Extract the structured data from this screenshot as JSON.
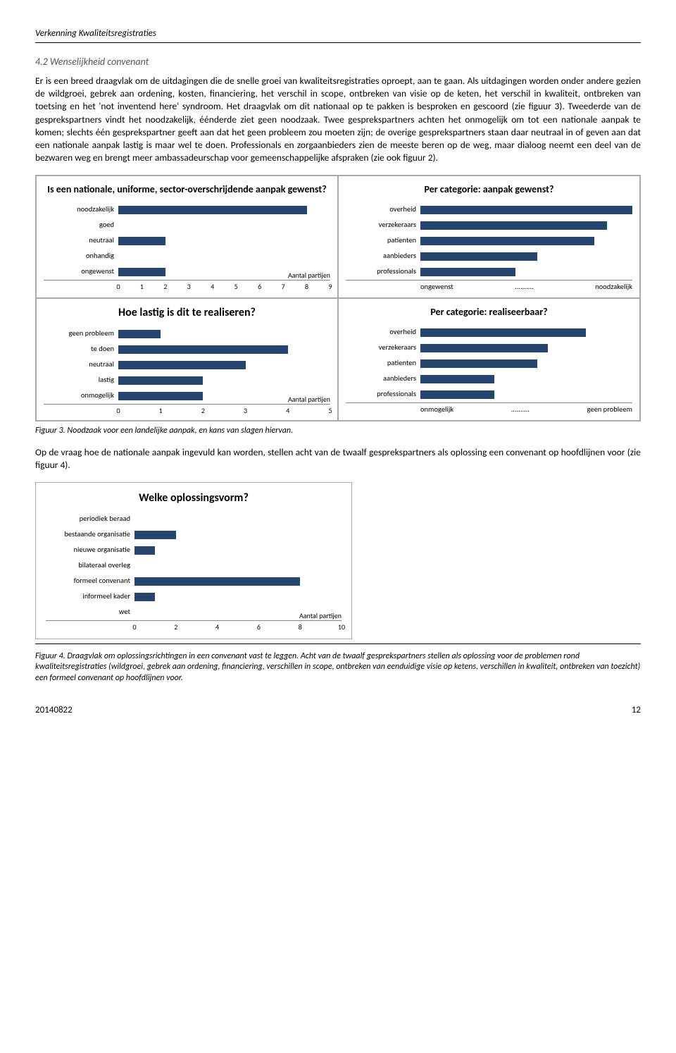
{
  "header": {
    "doc_title": "Verkenning Kwaliteitsregistraties"
  },
  "section": {
    "heading": "4.2 Wenselijkheid convenant",
    "paragraph": "Er is een breed draagvlak om de uitdagingen die de snelle groei van kwaliteitsregistraties oproept, aan te gaan. Als uitdagingen worden onder andere gezien de wildgroei, gebrek aan ordening, kosten, financiering, het verschil in scope, ontbreken van visie op de keten, het verschil in kwaliteit, ontbreken van toetsing en het 'not inventend here' syndroom. Het draagvlak om dit nationaal op te pakken is besproken en gescoord (zie figuur 3). Tweederde van de gesprekspartners vindt het noodzakelijk, éénderde ziet geen noodzaak. Twee gesprekspartners achten het onmogelijk om tot een nationale aanpak te komen; slechts één gesprekspartner geeft aan dat het geen probleem zou moeten zijn; de overige gesprekspartners staan daar neutraal in of geven aan dat een nationale aanpak lastig is maar wel te doen. Professionals en zorgaanbieders zien de meeste beren op de weg, maar dialoog neemt een deel van de bezwaren weg en brengt meer ambassadeurschap voor gemeenschappelijke afspraken (zie ook figuur 2).",
    "post_fig3_paragraph": "Op de vraag hoe de nationale aanpak ingevuld kan worden, stellen acht van de twaalf gesprekspartners als oplossing een convenant op hoofdlijnen voor (zie figuur 4)."
  },
  "figure3": {
    "caption": "Figuur 3. Noodzaak voor een landelijke aanpak, en kans van slagen hiervan.",
    "bar_color": "#26456e",
    "axis_label": "Aantal partijen",
    "chart_a": {
      "title": "Is een nationale, uniforme, sector-overschrijdende aanpak gewenst?",
      "xmax": 9,
      "ticks": [
        0,
        1,
        2,
        3,
        4,
        5,
        6,
        7,
        8,
        9
      ],
      "categories": [
        "noodzakelijk",
        "goed",
        "neutraal",
        "onhandig",
        "ongewenst"
      ],
      "values": [
        8,
        0,
        2,
        0,
        2
      ]
    },
    "chart_b": {
      "title": "Per categorie: aanpak gewenst?",
      "categories": [
        "overheid",
        "verzekeraars",
        "patienten",
        "aanbieders",
        "professionals"
      ],
      "values": [
        1.0,
        0.88,
        0.82,
        0.55,
        0.45
      ],
      "left_label": "ongewenst",
      "mid_label": "..........",
      "right_label": "noodzakelijk"
    },
    "chart_c": {
      "title": "Hoe lastig is dit te realiseren?",
      "xmax": 5,
      "ticks": [
        0,
        1,
        2,
        3,
        4,
        5
      ],
      "categories": [
        "geen probleem",
        "te doen",
        "neutraal",
        "lastig",
        "onmogelijk"
      ],
      "values": [
        1,
        4,
        3,
        2,
        2
      ]
    },
    "chart_d": {
      "title": "Per categorie: realiseerbaar?",
      "categories": [
        "overheid",
        "verzekeraars",
        "patienten",
        "aanbieders",
        "professionals"
      ],
      "values": [
        0.78,
        0.6,
        0.55,
        0.35,
        0.35
      ],
      "left_label": "onmogelijk",
      "mid_label": "..........",
      "right_label": "geen probleem"
    }
  },
  "figure4": {
    "title": "Welke oplossingsvorm?",
    "caption": "Figuur 4. Draagvlak om oplossingsrichtingen in een convenant vast te leggen. Acht van de twaalf gesprekspartners stellen als oplossing voor de problemen rond kwaliteitsregistraties (wildgroei, gebrek aan ordening, financiering, verschillen in scope, ontbreken van eenduidige visie op ketens, verschillen in kwaliteit, ontbreken van toezicht) een formeel convenant op hoofdlijnen voor.",
    "bar_color": "#26456e",
    "axis_label": "Aantal partijen",
    "xmax": 10,
    "ticks": [
      0,
      2,
      4,
      6,
      8,
      10
    ],
    "categories": [
      "periodiek beraad",
      "bestaande organisatie",
      "nieuwe organisatie",
      "bilateraal overleg",
      "formeel convenant",
      "informeel kader",
      "wet"
    ],
    "values": [
      0,
      2,
      1,
      0,
      8,
      1,
      0
    ]
  },
  "footer": {
    "date": "20140822",
    "page": "12"
  }
}
